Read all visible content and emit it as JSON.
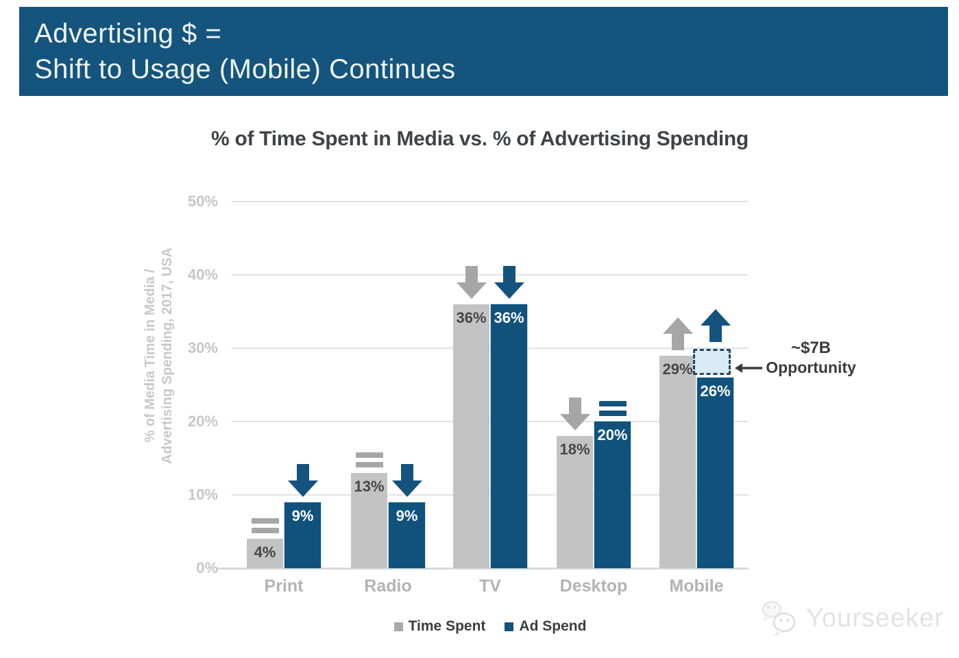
{
  "banner": {
    "line1": "Advertising $ =",
    "line2": "Shift to Usage (Mobile) Continues",
    "bg_color": "#15547D",
    "text_color": "#EDF4F8"
  },
  "chart_data": {
    "type": "bar",
    "title": "% of Time Spent in Media vs. % of Advertising Spending",
    "ylabel_line1": "% of Media Time in Media /",
    "ylabel_line2": "Advertising Spending, 2017, USA",
    "categories": [
      "Print",
      "Radio",
      "TV",
      "Desktop",
      "Mobile"
    ],
    "series": [
      {
        "name": "Time Spent",
        "color": "#C3C3C3",
        "legend_color": "#A9A9A9",
        "indicator_color": "#A6A6A6",
        "label_color": "#474747",
        "values": [
          4,
          13,
          36,
          18,
          29
        ],
        "value_labels": [
          "4%",
          "13%",
          "36%",
          "18%",
          "29%"
        ],
        "trend": [
          "equal",
          "equal",
          "down",
          "down",
          "up"
        ]
      },
      {
        "name": "Ad Spend",
        "color": "#10527C",
        "legend_color": "#14537D",
        "indicator_color": "#14537D",
        "label_color": "#FFFFFF",
        "values": [
          9,
          9,
          36,
          20,
          26
        ],
        "value_labels": [
          "9%",
          "9%",
          "36%",
          "20%",
          "26%"
        ],
        "trend": [
          "down",
          "down",
          "down",
          "equal",
          "up"
        ]
      }
    ],
    "y_ticks": [
      {
        "label": "50%",
        "value": 50
      },
      {
        "label": "40%",
        "value": 40
      },
      {
        "label": "30%",
        "value": 30
      },
      {
        "label": "20%",
        "value": 20
      },
      {
        "label": "10%",
        "value": 10
      },
      {
        "label": "0%",
        "value": 0
      }
    ],
    "ylim": [
      0,
      50
    ],
    "grid": true,
    "legend_position": "bottom",
    "annotation": {
      "amount": "~$7B",
      "label": "Opportunity",
      "target": "gap between Mobile ad spend 26% and time spent 29%"
    }
  },
  "watermark": {
    "text": "Yourseeker"
  },
  "colors": {
    "gridline": "#E2E2E2",
    "axis_text": "#C6C6C6",
    "category_text": "#B3B3B3",
    "opportunity_box_fill": "#D9EBF7",
    "opportunity_box_border": "#26455E",
    "annotation_text": "#3B3B3B"
  }
}
